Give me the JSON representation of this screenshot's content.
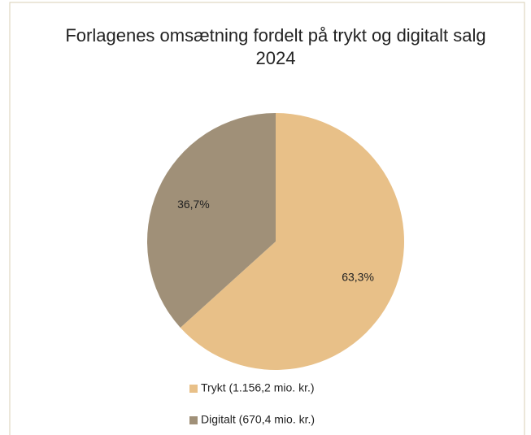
{
  "chart_data": {
    "type": "pie",
    "title": "Forlagenes omsætning fordelt på trykt og digitalt salg",
    "subtitle": "2024",
    "categories": [
      "Trykt (1.156,2 mio. kr.)",
      "Digitalt (670,4 mio. kr.)"
    ],
    "values": [
      63.3,
      36.7
    ],
    "value_labels": [
      "63,3%",
      "36,7%"
    ],
    "colors": [
      "#e8c088",
      "#a09078"
    ],
    "legend": "bottom"
  }
}
